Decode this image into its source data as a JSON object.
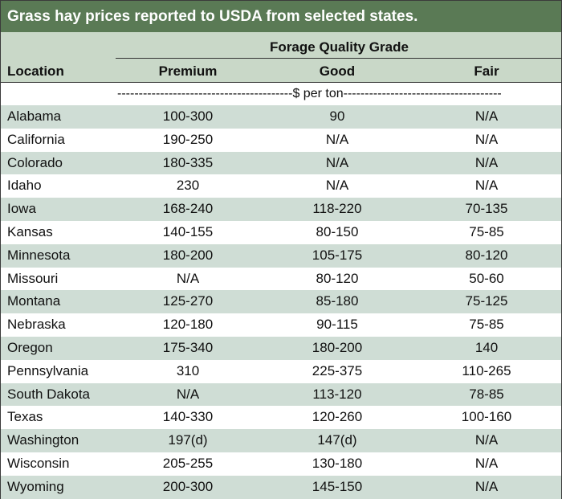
{
  "title": "Grass hay prices reported to USDA from selected states.",
  "header": {
    "group": "Forage Quality Grade",
    "location": "Location",
    "premium": "Premium",
    "good": "Good",
    "fair": "Fair"
  },
  "units": "-----------------------------------------$ per ton-------------------------------------",
  "table": {
    "columns": [
      "Location",
      "Premium",
      "Good",
      "Fair"
    ],
    "rows": [
      {
        "location": "Alabama",
        "premium": "100-300",
        "good": "90",
        "fair": "N/A"
      },
      {
        "location": "California",
        "premium": "190-250",
        "good": "N/A",
        "fair": "N/A"
      },
      {
        "location": "Colorado",
        "premium": "180-335",
        "good": "N/A",
        "fair": "N/A"
      },
      {
        "location": "Idaho",
        "premium": "230",
        "good": "N/A",
        "fair": "N/A"
      },
      {
        "location": "Iowa",
        "premium": "168-240",
        "good": "118-220",
        "fair": "70-135"
      },
      {
        "location": "Kansas",
        "premium": "140-155",
        "good": "80-150",
        "fair": "75-85"
      },
      {
        "location": "Minnesota",
        "premium": "180-200",
        "good": "105-175",
        "fair": "80-120"
      },
      {
        "location": "Missouri",
        "premium": "N/A",
        "good": "80-120",
        "fair": "50-60"
      },
      {
        "location": "Montana",
        "premium": "125-270",
        "good": "85-180",
        "fair": "75-125"
      },
      {
        "location": "Nebraska",
        "premium": "120-180",
        "good": "90-115",
        "fair": "75-85"
      },
      {
        "location": "Oregon",
        "premium": "175-340",
        "good": "180-200",
        "fair": "140"
      },
      {
        "location": "Pennsylvania",
        "premium": "310",
        "good": "225-375",
        "fair": "110-265"
      },
      {
        "location": "South Dakota",
        "premium": "N/A",
        "good": "113-120",
        "fair": "78-85"
      },
      {
        "location": "Texas",
        "premium": "140-330",
        "good": "120-260",
        "fair": "100-160"
      },
      {
        "location": "Washington",
        "premium": "197(d)",
        "good": "147(d)",
        "fair": "N/A"
      },
      {
        "location": "Wisconsin",
        "premium": "205-255",
        "good": "130-180",
        "fair": "N/A"
      },
      {
        "location": "Wyoming",
        "premium": "200-300",
        "good": "145-150",
        "fair": "N/A"
      }
    ]
  },
  "colors": {
    "title_background": "#5a7a55",
    "header_background": "#c9d8c8",
    "row_shade": "#cfddd5",
    "row_plain": "#ffffff"
  }
}
